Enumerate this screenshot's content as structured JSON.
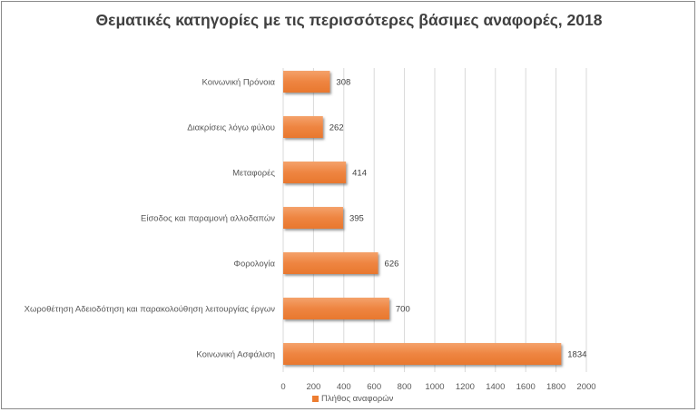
{
  "chart_data": {
    "type": "bar",
    "orientation": "horizontal",
    "title": "Θεματικές κατηγορίες με τις περισσότερες βάσιμες αναφορές, 2018",
    "categories": [
      "Κοινωνική Πρόνοια",
      "Διακρίσεις λόγω φύλου",
      "Μεταφορές",
      "Είσοδος και παραμονή αλλοδαπών",
      "Φορολογία",
      "Χωροθέτηση Αδειοδότηση και παρακολούθηση λειτουργίας έργων",
      "Κοινωνική Ασφάλιση"
    ],
    "series": [
      {
        "name": "Πλήθος αναφορών",
        "values": [
          308,
          262,
          414,
          395,
          626,
          700,
          1834
        ],
        "color": "#ed7d31"
      }
    ],
    "xlim": [
      0,
      2000
    ],
    "xticks": [
      "0",
      "200",
      "400",
      "600",
      "800",
      "1000",
      "1200",
      "1400",
      "1600",
      "1800",
      "2000"
    ],
    "grid": true,
    "legend": "bottom",
    "xlabel": "",
    "ylabel": ""
  }
}
